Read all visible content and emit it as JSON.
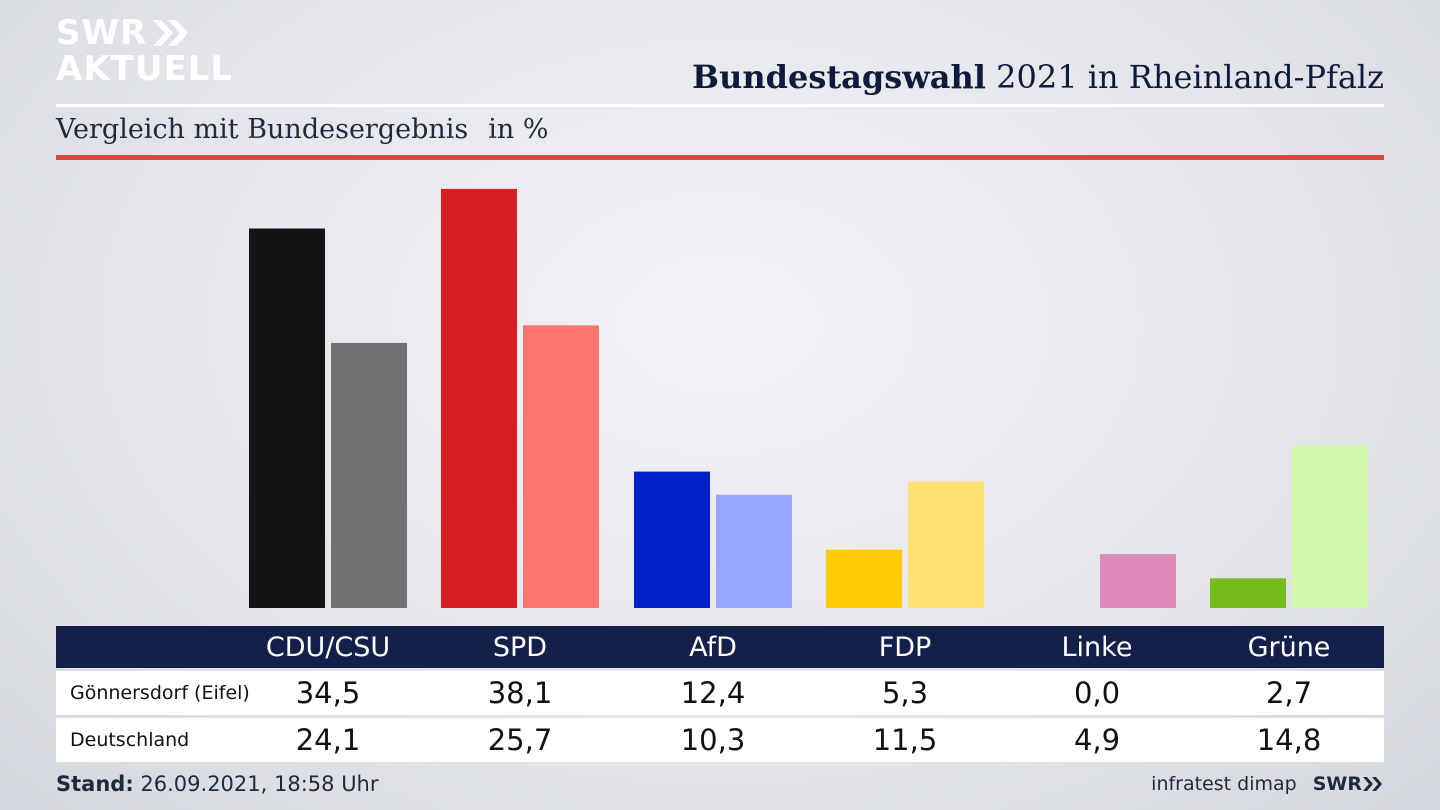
{
  "logo": {
    "line1": "SWR",
    "line2": "AKTUELL"
  },
  "header": {
    "title_bold": "Bundestagswahl",
    "title_rest": "2021 in Rheinland-Pfalz"
  },
  "subheader": {
    "text": "Vergleich mit Bundesergebnis",
    "unit": "in %"
  },
  "chart_data": {
    "type": "bar",
    "categories": [
      "CDU/CSU",
      "SPD",
      "AfD",
      "FDP",
      "Linke",
      "Grüne"
    ],
    "series": [
      {
        "name": "Gönnersdorf (Eifel)",
        "values": [
          34.5,
          38.1,
          12.4,
          5.3,
          0.0,
          2.7
        ],
        "colors": [
          "#141414",
          "#d71f21",
          "#0021c8",
          "#ffcc05",
          "#be3075",
          "#74bd1c"
        ]
      },
      {
        "name": "Deutschland",
        "values": [
          24.1,
          25.7,
          10.3,
          11.5,
          4.9,
          14.8
        ],
        "colors": [
          "#737170",
          "#ff7671",
          "#99a6ff",
          "#ffe070",
          "#e08abb",
          "#d3f8a9"
        ]
      }
    ],
    "display_values": [
      [
        "34,5",
        "38,1",
        "12,4",
        "5,3",
        "0,0",
        "2,7"
      ],
      [
        "24,1",
        "25,7",
        "10,3",
        "11,5",
        "4,9",
        "14,8"
      ]
    ],
    "ylim": [
      0,
      40
    ],
    "grid": false
  },
  "footer": {
    "stand_label": "Stand:",
    "stand_value": "26.09.2021, 18:58 Uhr",
    "source": "infratest dimap",
    "brand": "SWR"
  }
}
